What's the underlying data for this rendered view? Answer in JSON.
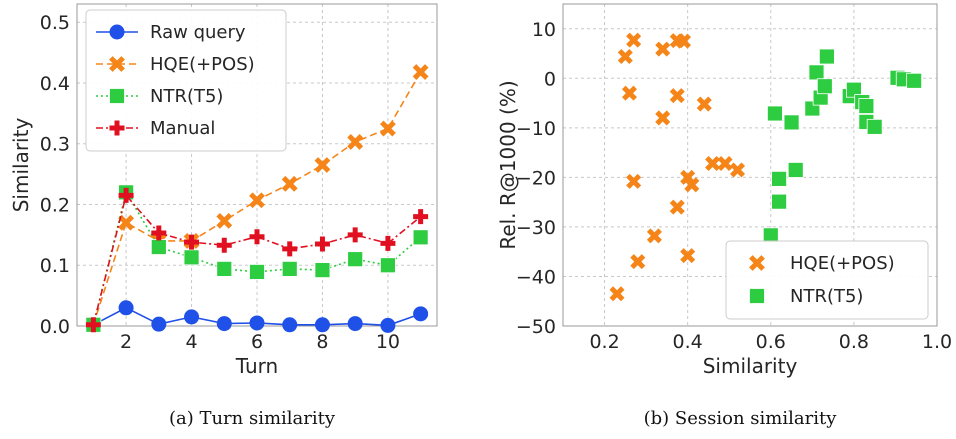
{
  "chart_data": [
    {
      "type": "line",
      "caption": "(a) Turn similarity",
      "xlabel": "Turn",
      "ylabel": "Similarity",
      "xlim": [
        0.5,
        11.5
      ],
      "ylim": [
        0,
        0.53
      ],
      "xticks": [
        "2",
        "4",
        "6",
        "8",
        "10"
      ],
      "yticks": [
        "0.0",
        "0.1",
        "0.2",
        "0.3",
        "0.4",
        "0.5"
      ],
      "grid": true,
      "legend_position": "top-left",
      "x": [
        1,
        2,
        3,
        4,
        5,
        6,
        7,
        8,
        9,
        10,
        11
      ],
      "series": [
        {
          "name": "Raw query",
          "marker": "circle",
          "color": "#1f50e8",
          "dash": "solid",
          "values": [
            0.002,
            0.03,
            0.003,
            0.015,
            0.004,
            0.005,
            0.002,
            0.002,
            0.004,
            0.001,
            0.02
          ]
        },
        {
          "name": "HQE(+POS)",
          "marker": "x",
          "color": "#f58518",
          "dash": "dashed",
          "values": [
            0.002,
            0.17,
            0.14,
            0.14,
            0.173,
            0.207,
            0.234,
            0.265,
            0.303,
            0.325,
            0.418
          ]
        },
        {
          "name": "NTR(T5)",
          "marker": "square",
          "color": "#2ecc40",
          "dash": "dotted",
          "values": [
            0.002,
            0.22,
            0.13,
            0.113,
            0.094,
            0.089,
            0.094,
            0.092,
            0.11,
            0.1,
            0.146
          ]
        },
        {
          "name": "Manual",
          "marker": "plus",
          "color": "#e01020",
          "dash": "dashdot",
          "values": [
            0.002,
            0.215,
            0.153,
            0.138,
            0.133,
            0.147,
            0.127,
            0.135,
            0.15,
            0.136,
            0.18
          ]
        }
      ]
    },
    {
      "type": "scatter",
      "caption": "(b) Session similarity",
      "xlabel": "Similarity",
      "ylabel": "Rel. R@1000 (%)",
      "xlim": [
        0.1,
        1.0
      ],
      "ylim": [
        -50,
        15
      ],
      "xticks": [
        "0.2",
        "0.4",
        "0.6",
        "0.8",
        "1.0"
      ],
      "yticks": [
        "10",
        "0",
        "−10",
        "−20",
        "−30",
        "−40",
        "−50"
      ],
      "grid": true,
      "legend_position": "bottom-right",
      "series": [
        {
          "name": "HQE(+POS)",
          "marker": "x",
          "color": "#f58518",
          "points": [
            [
              0.23,
              -43.5
            ],
            [
              0.25,
              4.4
            ],
            [
              0.26,
              -3.0
            ],
            [
              0.27,
              -20.8
            ],
            [
              0.27,
              7.7
            ],
            [
              0.28,
              -37.0
            ],
            [
              0.32,
              -31.8
            ],
            [
              0.34,
              5.9
            ],
            [
              0.34,
              -8.0
            ],
            [
              0.375,
              7.6
            ],
            [
              0.375,
              -3.5
            ],
            [
              0.375,
              -26.0
            ],
            [
              0.39,
              7.5
            ],
            [
              0.4,
              -35.8
            ],
            [
              0.4,
              -20.0
            ],
            [
              0.41,
              -21.5
            ],
            [
              0.44,
              -5.2
            ],
            [
              0.46,
              -17.2
            ],
            [
              0.49,
              -17.2
            ],
            [
              0.52,
              -18.5
            ]
          ]
        },
        {
          "name": "NTR(T5)",
          "marker": "square",
          "color": "#2ecc40",
          "points": [
            [
              0.6,
              -31.7
            ],
            [
              0.61,
              -7.1
            ],
            [
              0.62,
              -20.3
            ],
            [
              0.62,
              -24.9
            ],
            [
              0.65,
              -8.9
            ],
            [
              0.66,
              -18.5
            ],
            [
              0.7,
              -6.1
            ],
            [
              0.71,
              1.2
            ],
            [
              0.72,
              -3.9
            ],
            [
              0.73,
              -1.6
            ],
            [
              0.735,
              4.4
            ],
            [
              0.79,
              -3.6
            ],
            [
              0.8,
              -2.3
            ],
            [
              0.82,
              -4.8
            ],
            [
              0.83,
              -5.6
            ],
            [
              0.83,
              -8.8
            ],
            [
              0.85,
              -9.8
            ],
            [
              0.905,
              0.1
            ],
            [
              0.92,
              -0.2
            ],
            [
              0.945,
              -0.5
            ]
          ]
        }
      ]
    }
  ]
}
